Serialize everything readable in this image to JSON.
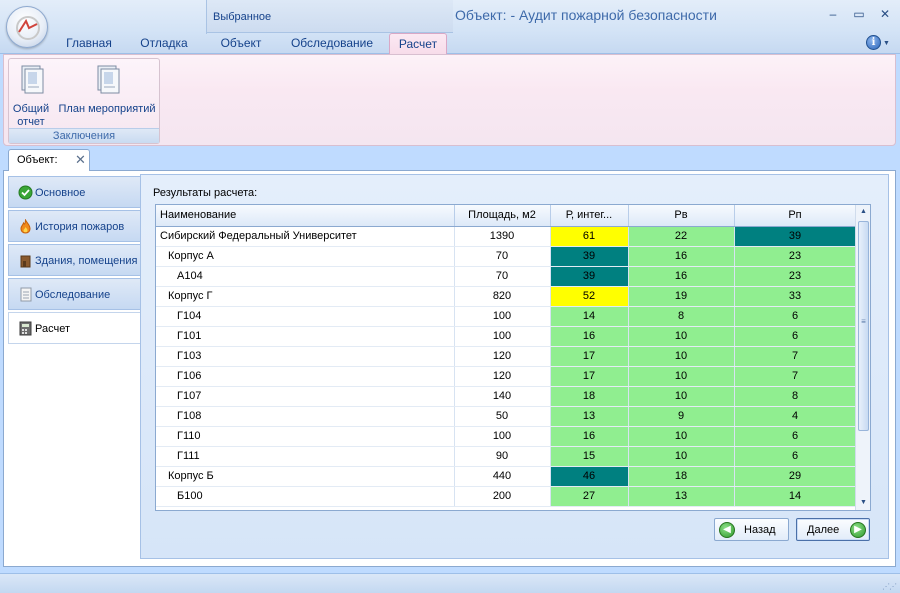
{
  "favorites": {
    "label": "Выбранное"
  },
  "window": {
    "title": "Объект:  - Аудит пожарной безопасности"
  },
  "ribbon_tabs": [
    {
      "label": "Главная"
    },
    {
      "label": "Отладка"
    },
    {
      "label": "Объект"
    },
    {
      "label": "Обследование"
    },
    {
      "label": "Расчет"
    }
  ],
  "ribbon": {
    "group_label": "Заключения",
    "buttons": [
      {
        "label_line1": "Общий",
        "label_line2": "отчет",
        "icon": "report-icon"
      },
      {
        "label_line1": "План мероприятий",
        "label_line2": "",
        "icon": "plan-icon"
      }
    ]
  },
  "doc_tab": {
    "label": "Объект:",
    "close": "✕"
  },
  "nav": [
    {
      "label": "Основное",
      "icon": "check-icon"
    },
    {
      "label": "История пожаров",
      "icon": "fire-icon"
    },
    {
      "label": "Здания, помещения",
      "icon": "building-icon"
    },
    {
      "label": "Обследование",
      "icon": "document-icon"
    },
    {
      "label": "Расчет",
      "icon": "calculator-icon",
      "active": true
    }
  ],
  "results": {
    "label": "Результаты расчета:",
    "columns": [
      "Наименование",
      "Площадь, м2",
      "Р, интег...",
      "Рв",
      "Рп"
    ],
    "rows": [
      {
        "name": "Сибирский Федеральный Университет",
        "level": 0,
        "area": "1390",
        "p": "61",
        "pv": "22",
        "pp": "39",
        "p_color": "yellow",
        "pp_color": "teal"
      },
      {
        "name": "Корпус А",
        "level": 1,
        "area": "70",
        "p": "39",
        "pv": "16",
        "pp": "23",
        "p_color": "teal",
        "pp_color": "green"
      },
      {
        "name": "А104",
        "level": 2,
        "area": "70",
        "p": "39",
        "pv": "16",
        "pp": "23",
        "p_color": "teal",
        "pp_color": "green"
      },
      {
        "name": "Корпус Г",
        "level": 1,
        "area": "820",
        "p": "52",
        "pv": "19",
        "pp": "33",
        "p_color": "yellow",
        "pp_color": "green"
      },
      {
        "name": "Г104",
        "level": 2,
        "area": "100",
        "p": "14",
        "pv": "8",
        "pp": "6",
        "p_color": "green",
        "pp_color": "green"
      },
      {
        "name": "Г101",
        "level": 2,
        "area": "100",
        "p": "16",
        "pv": "10",
        "pp": "6",
        "p_color": "green",
        "pp_color": "green"
      },
      {
        "name": "Г103",
        "level": 2,
        "area": "120",
        "p": "17",
        "pv": "10",
        "pp": "7",
        "p_color": "green",
        "pp_color": "green"
      },
      {
        "name": "Г106",
        "level": 2,
        "area": "120",
        "p": "17",
        "pv": "10",
        "pp": "7",
        "p_color": "green",
        "pp_color": "green"
      },
      {
        "name": "Г107",
        "level": 2,
        "area": "140",
        "p": "18",
        "pv": "10",
        "pp": "8",
        "p_color": "green",
        "pp_color": "green"
      },
      {
        "name": "Г108",
        "level": 2,
        "area": "50",
        "p": "13",
        "pv": "9",
        "pp": "4",
        "p_color": "green",
        "pp_color": "green"
      },
      {
        "name": "Г110",
        "level": 2,
        "area": "100",
        "p": "16",
        "pv": "10",
        "pp": "6",
        "p_color": "green",
        "pp_color": "green"
      },
      {
        "name": "Г111",
        "level": 2,
        "area": "90",
        "p": "15",
        "pv": "10",
        "pp": "6",
        "p_color": "green",
        "pp_color": "green"
      },
      {
        "name": "Корпус Б",
        "level": 1,
        "area": "440",
        "p": "46",
        "pv": "18",
        "pp": "29",
        "p_color": "teal",
        "pp_color": "green"
      },
      {
        "name": "Б100",
        "level": 2,
        "area": "200",
        "p": "27",
        "pv": "13",
        "pp": "14",
        "p_color": "green",
        "pp_color": "green"
      }
    ]
  },
  "buttons": {
    "back": "Назад",
    "next": "Далее"
  },
  "colors": {
    "yellow": "#ffff00",
    "teal": "#008080",
    "green": "#90ee90",
    "accent": "#15428b"
  }
}
